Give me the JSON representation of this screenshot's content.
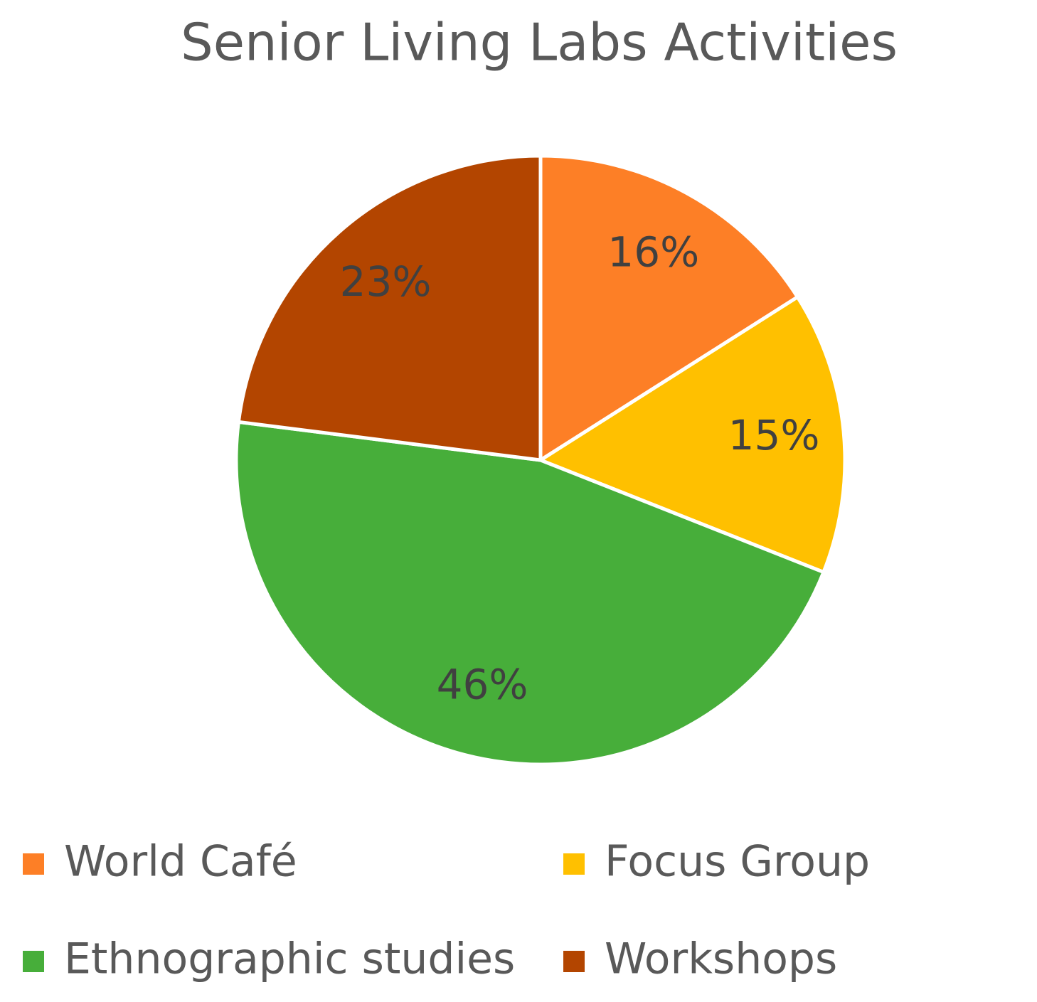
{
  "chart_data": {
    "type": "pie",
    "title": "Senior Living Labs Activities",
    "categories": [
      "World Café",
      "Focus Group",
      "Ethnographic studies",
      "Workshops"
    ],
    "values": [
      16,
      15,
      46,
      23
    ],
    "value_labels": [
      "16%",
      "15%",
      "46%",
      "23%"
    ],
    "colors": [
      "#fd7f26",
      "#ffc000",
      "#47ae3a",
      "#b34500"
    ],
    "legend": "bottom"
  }
}
